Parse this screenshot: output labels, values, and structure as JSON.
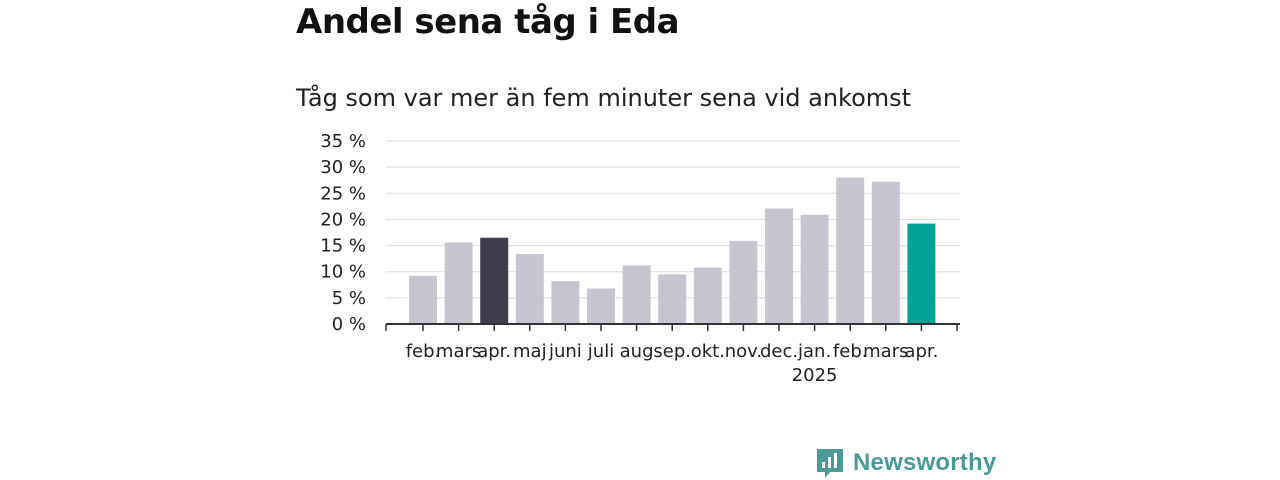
{
  "header": {
    "title": "Andel sena tåg i Eda",
    "subtitle": "Tåg som var mer än fem minuter sena vid ankomst"
  },
  "chart_data": {
    "type": "bar",
    "categories": [
      "feb.",
      "mars",
      "apr.",
      "maj",
      "juni",
      "juli",
      "aug",
      "sep.",
      "okt.",
      "nov.",
      "dec.",
      "jan.",
      "feb.",
      "mars",
      "apr."
    ],
    "values": [
      9.2,
      15.6,
      16.5,
      13.4,
      8.2,
      6.8,
      11.2,
      9.5,
      10.8,
      15.9,
      22.1,
      20.9,
      28.0,
      27.2,
      19.2
    ],
    "year_labels": [
      {
        "index": 11,
        "label": "2025"
      }
    ],
    "title": "Andel sena tåg i Eda",
    "subtitle": "Tåg som var mer än fem minuter sena vid ankomst",
    "xlabel": "",
    "ylabel": "",
    "ylim": [
      0,
      35
    ],
    "yticks": [
      0,
      5,
      10,
      15,
      20,
      25,
      30,
      35
    ],
    "ytick_format": "{v} %",
    "grid": true,
    "colors": {
      "default": "#c7c6d0",
      "reference": "#3f3e4d",
      "highlight": "#00a597",
      "grid": "#dddddd",
      "axis": "#333333"
    },
    "reference_index": 2,
    "highlight_index": 14
  },
  "brand": {
    "name": "Newsworthy",
    "icon": "bar-chart-logo-icon",
    "color": "#4a9a98"
  }
}
